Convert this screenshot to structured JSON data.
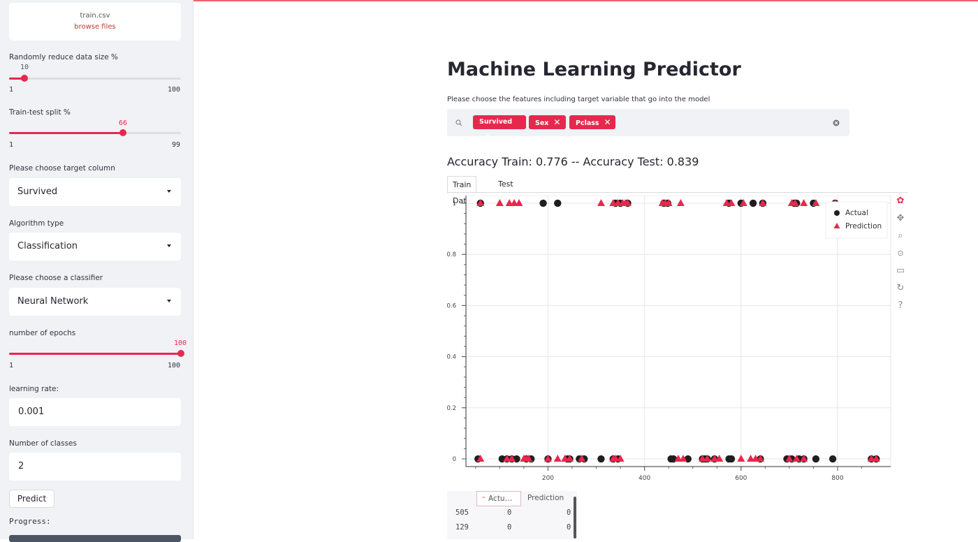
{
  "sidebar": {
    "upload": {
      "file": "train.csv",
      "browse": "browse files"
    },
    "reduce": {
      "label": "Randomly reduce data size %",
      "value": "10",
      "min": "1",
      "max": "100",
      "fraction": 0.091
    },
    "split": {
      "label": "Train-test split %",
      "value": "66",
      "min": "1",
      "max": "99",
      "fraction": 0.663
    },
    "target": {
      "label": "Please choose target column",
      "value": "Survived"
    },
    "algo": {
      "label": "Algorithm type",
      "value": "Classification"
    },
    "classifier": {
      "label": "Please choose a classifier",
      "value": "Neural Network"
    },
    "epochs": {
      "label": "number of epochs",
      "value": "100",
      "min": "1",
      "max": "100",
      "fraction": 1.0
    },
    "lr": {
      "label": "learning rate:",
      "value": "0.001"
    },
    "classes": {
      "label": "Number of classes",
      "value": "2"
    },
    "predict": "Predict",
    "progress": "Progress:"
  },
  "main": {
    "title": "Machine Learning Predictor",
    "subtitle": "Please choose the features including target variable that go into the model",
    "chips": [
      "Survived",
      "Sex",
      "Pclass"
    ],
    "accuracy": "Accuracy Train: 0.776 -- Accuracy Test: 0.839",
    "tabs": [
      "Train Data",
      "Test Data"
    ],
    "table": {
      "headers": [
        "Actu…",
        "Prediction"
      ],
      "rows": [
        {
          "index": "505",
          "actual": "0",
          "prediction": "0"
        },
        {
          "index": "129",
          "actual": "0",
          "prediction": "0"
        }
      ]
    }
  },
  "icons": {
    "search": "search-icon",
    "clear": "clear-icon",
    "tools": [
      "bokeh-logo-icon",
      "pan-icon",
      "box-zoom-icon",
      "wheel-zoom-icon",
      "save-icon",
      "reset-icon",
      "help-icon"
    ]
  },
  "colors": {
    "accent": "#e7284d",
    "actual": "#1f1f1f",
    "prediction": "#e7284d"
  },
  "chart_data": {
    "type": "scatter",
    "x_ticks": [
      "200",
      "400",
      "600",
      "800"
    ],
    "y_ticks": [
      "0",
      "0.2",
      "0.4",
      "0.6",
      "0.8",
      "1"
    ],
    "xlim": [
      30,
      910
    ],
    "ylim": [
      -0.03,
      1.03
    ],
    "legend": "top-right",
    "series": [
      {
        "name": "Actual",
        "marker": "circle",
        "x1": [
          60,
          190,
          220,
          340,
          350,
          365,
          440,
          448,
          575,
          600,
          625,
          645,
          710,
          715,
          750,
          795
        ],
        "x0": [
          55,
          105,
          115,
          125,
          135,
          155,
          165,
          200,
          240,
          245,
          265,
          275,
          310,
          335,
          345,
          455,
          460,
          490,
          520,
          525,
          530,
          545,
          575,
          580,
          640,
          695,
          705,
          720,
          730,
          755,
          790,
          870,
          880
        ]
      },
      {
        "name": "Prediction",
        "marker": "triangle",
        "x1": [
          60,
          100,
          120,
          130,
          140,
          310,
          335,
          345,
          355,
          360,
          365,
          437,
          443,
          450,
          475,
          570,
          580,
          605,
          645,
          705,
          712,
          730,
          755,
          795
        ],
        "x0": [
          60,
          115,
          125,
          150,
          155,
          160,
          200,
          220,
          235,
          245,
          270,
          335,
          340,
          350,
          470,
          480,
          520,
          530,
          545,
          555,
          600,
          620,
          630,
          640,
          700,
          715,
          730,
          870,
          880
        ]
      }
    ]
  }
}
